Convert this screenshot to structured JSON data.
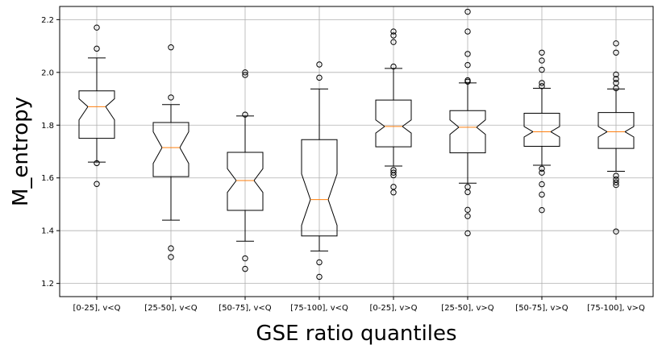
{
  "chart_data": {
    "type": "boxplot",
    "notched": true,
    "grid": true,
    "xlabel": "GSE ratio quantiles",
    "ylabel": "M_entropy",
    "ylim": [
      1.15,
      2.25
    ],
    "yticks": [
      "1.2",
      "1.4",
      "1.6",
      "1.8",
      "2.0",
      "2.2"
    ],
    "categories": [
      "[0-25], v<Q",
      "[25-50], v<Q",
      "[50-75], v<Q",
      "[75-100], v<Q",
      "[0-25], v>Q",
      "[25-50], v>Q",
      "[50-75], v>Q",
      "[75-100], v>Q"
    ],
    "boxes": [
      {
        "whisker_low": 1.66,
        "q1": 1.75,
        "median": 1.87,
        "q3": 1.93,
        "whisker_high": 2.055,
        "notch_low": 1.82,
        "notch_high": 1.9,
        "fliers": [
          1.577,
          1.656,
          2.09,
          2.17
        ]
      },
      {
        "whisker_low": 1.44,
        "q1": 1.605,
        "median": 1.715,
        "q3": 1.81,
        "whisker_high": 1.878,
        "notch_low": 1.655,
        "notch_high": 1.775,
        "fliers": [
          1.3,
          1.333,
          1.905,
          2.095
        ]
      },
      {
        "whisker_low": 1.36,
        "q1": 1.477,
        "median": 1.59,
        "q3": 1.697,
        "whisker_high": 1.835,
        "notch_low": 1.545,
        "notch_high": 1.635,
        "fliers": [
          1.255,
          1.295,
          1.84,
          1.99,
          2.0
        ]
      },
      {
        "whisker_low": 1.323,
        "q1": 1.38,
        "median": 1.518,
        "q3": 1.745,
        "whisker_high": 1.937,
        "notch_low": 1.42,
        "notch_high": 1.615,
        "fliers": [
          1.225,
          1.28,
          1.98,
          2.03
        ]
      },
      {
        "whisker_low": 1.645,
        "q1": 1.718,
        "median": 1.795,
        "q3": 1.895,
        "whisker_high": 2.015,
        "notch_low": 1.77,
        "notch_high": 1.82,
        "fliers": [
          1.545,
          1.566,
          1.61,
          1.62,
          1.63,
          2.022,
          2.115,
          2.14,
          2.155
        ]
      },
      {
        "whisker_low": 1.58,
        "q1": 1.695,
        "median": 1.792,
        "q3": 1.855,
        "whisker_high": 1.96,
        "notch_low": 1.765,
        "notch_high": 1.82,
        "fliers": [
          1.39,
          1.455,
          1.479,
          1.546,
          1.566,
          1.965,
          1.97,
          2.028,
          2.07,
          2.155,
          2.23
        ]
      },
      {
        "whisker_low": 1.648,
        "q1": 1.72,
        "median": 1.775,
        "q3": 1.845,
        "whisker_high": 1.94,
        "notch_low": 1.755,
        "notch_high": 1.795,
        "fliers": [
          1.478,
          1.537,
          1.576,
          1.62,
          1.635,
          1.948,
          1.96,
          2.01,
          2.045,
          2.075
        ]
      },
      {
        "whisker_low": 1.625,
        "q1": 1.712,
        "median": 1.775,
        "q3": 1.848,
        "whisker_high": 1.937,
        "notch_low": 1.755,
        "notch_high": 1.795,
        "fliers": [
          1.397,
          1.573,
          1.583,
          1.594,
          1.608,
          1.94,
          1.96,
          1.975,
          1.992,
          2.075,
          2.11
        ]
      }
    ],
    "colors": {
      "box": "#000000",
      "median": "#ff7f0e",
      "grid": "#b0b0b0",
      "flier": "#000000"
    }
  }
}
